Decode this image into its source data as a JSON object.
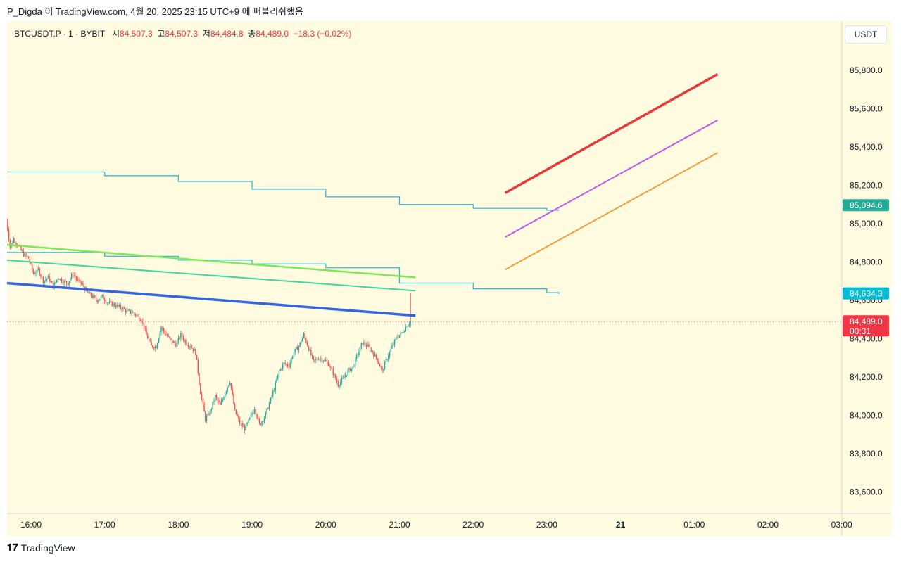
{
  "caption": "P_Digda 이 TradingView.com, 4월 20, 2025 23:15 UTC+9 에 퍼블리쉬했음",
  "symbol": {
    "name": "BTCUSDT.P · 1 · BYBIT",
    "o_label": "시",
    "o": "84,507.3",
    "h_label": "고",
    "h": "84,507.3",
    "l_label": "저",
    "l": "84,484.8",
    "c_label": "종",
    "c": "84,489.0",
    "change": "−18.3 (−0.02%)"
  },
  "currency": "USDT",
  "footer": {
    "brand": "TradingView"
  },
  "colors": {
    "background": "#fffbe0",
    "up": "#26a69a",
    "down": "#ef5350",
    "red": "#e8383a",
    "violet": "#c05ce8",
    "orange": "#f0a040",
    "blue": "#3366e0",
    "green": "#7ee85a",
    "teal": "#40d89a",
    "cyan": "#26b5d4"
  },
  "chart_data": {
    "type": "candlestick",
    "ylim": [
      83500,
      85950
    ],
    "xlim": [
      "15:40",
      "03:10"
    ],
    "y_ticks": [
      "85,800.0",
      "85,600.0",
      "85,400.0",
      "85,200.0",
      "85,000.0",
      "84,800.0",
      "84,600.0",
      "84,400.0",
      "84,200.0",
      "84,000.0",
      "83,800.0",
      "83,600.0"
    ],
    "x_ticks": [
      {
        "label": "16:00",
        "t": 0
      },
      {
        "label": "17:00",
        "t": 60
      },
      {
        "label": "18:00",
        "t": 120
      },
      {
        "label": "19:00",
        "t": 180
      },
      {
        "label": "20:00",
        "t": 240
      },
      {
        "label": "21:00",
        "t": 300
      },
      {
        "label": "22:00",
        "t": 360
      },
      {
        "label": "23:00",
        "t": 420
      },
      {
        "label": "21",
        "t": 480
      },
      {
        "label": "01:00",
        "t": 540
      },
      {
        "label": "02:00",
        "t": 600
      },
      {
        "label": "03:00",
        "t": 660
      }
    ],
    "price_path": [
      [
        -20,
        85020
      ],
      [
        -17,
        84880
      ],
      [
        -14,
        84920
      ],
      [
        -10,
        84880
      ],
      [
        -6,
        84840
      ],
      [
        -2,
        84820
      ],
      [
        2,
        84740
      ],
      [
        6,
        84760
      ],
      [
        10,
        84700
      ],
      [
        14,
        84720
      ],
      [
        18,
        84670
      ],
      [
        22,
        84720
      ],
      [
        26,
        84700
      ],
      [
        30,
        84690
      ],
      [
        34,
        84740
      ],
      [
        38,
        84700
      ],
      [
        42,
        84680
      ],
      [
        46,
        84640
      ],
      [
        50,
        84620
      ],
      [
        54,
        84600
      ],
      [
        58,
        84620
      ],
      [
        62,
        84590
      ],
      [
        66,
        84580
      ],
      [
        70,
        84570
      ],
      [
        74,
        84560
      ],
      [
        78,
        84540
      ],
      [
        82,
        84540
      ],
      [
        86,
        84520
      ],
      [
        90,
        84500
      ],
      [
        94,
        84420
      ],
      [
        98,
        84360
      ],
      [
        102,
        84360
      ],
      [
        106,
        84460
      ],
      [
        110,
        84420
      ],
      [
        114,
        84390
      ],
      [
        118,
        84370
      ],
      [
        122,
        84420
      ],
      [
        126,
        84380
      ],
      [
        130,
        84360
      ],
      [
        134,
        84330
      ],
      [
        138,
        84120
      ],
      [
        142,
        83980
      ],
      [
        146,
        84020
      ],
      [
        150,
        84100
      ],
      [
        154,
        84050
      ],
      [
        158,
        84120
      ],
      [
        162,
        84180
      ],
      [
        166,
        84020
      ],
      [
        170,
        83960
      ],
      [
        174,
        83930
      ],
      [
        178,
        83980
      ],
      [
        182,
        84040
      ],
      [
        186,
        83950
      ],
      [
        190,
        83990
      ],
      [
        194,
        84060
      ],
      [
        198,
        84140
      ],
      [
        202,
        84230
      ],
      [
        206,
        84270
      ],
      [
        210,
        84260
      ],
      [
        214,
        84330
      ],
      [
        218,
        84360
      ],
      [
        222,
        84420
      ],
      [
        226,
        84350
      ],
      [
        230,
        84280
      ],
      [
        234,
        84300
      ],
      [
        238,
        84290
      ],
      [
        242,
        84270
      ],
      [
        246,
        84220
      ],
      [
        250,
        84160
      ],
      [
        254,
        84190
      ],
      [
        258,
        84230
      ],
      [
        262,
        84250
      ],
      [
        266,
        84320
      ],
      [
        270,
        84380
      ],
      [
        274,
        84360
      ],
      [
        278,
        84330
      ],
      [
        282,
        84290
      ],
      [
        286,
        84230
      ],
      [
        290,
        84300
      ],
      [
        294,
        84360
      ],
      [
        298,
        84410
      ],
      [
        302,
        84430
      ],
      [
        306,
        84470
      ],
      [
        309,
        84489
      ]
    ],
    "indicators": [
      {
        "name": "red_line",
        "color": "#e8383a",
        "width": 3.5,
        "points": [
          [
            386,
            85160
          ],
          [
            559,
            85780
          ]
        ]
      },
      {
        "name": "violet_line",
        "color": "#c05ce8",
        "width": 2,
        "points": [
          [
            386,
            84930
          ],
          [
            559,
            85540
          ]
        ]
      },
      {
        "name": "orange_line",
        "color": "#f0a040",
        "width": 2,
        "points": [
          [
            386,
            84760
          ],
          [
            559,
            85370
          ]
        ]
      },
      {
        "name": "green_line",
        "color": "#7ee85a",
        "width": 2.5,
        "points": [
          [
            -20,
            84890
          ],
          [
            313,
            84720
          ]
        ]
      },
      {
        "name": "teal_line",
        "color": "#40d89a",
        "width": 2,
        "points": [
          [
            -20,
            84810
          ],
          [
            313,
            84650
          ]
        ]
      },
      {
        "name": "blue_line",
        "color": "#3366e0",
        "width": 3.5,
        "points": [
          [
            -20,
            84690
          ],
          [
            313,
            84520
          ]
        ]
      }
    ],
    "step_lines": [
      {
        "name": "upper_band",
        "color": "#26b5d4",
        "points": [
          [
            -20,
            85270
          ],
          [
            60,
            85250
          ],
          [
            120,
            85220
          ],
          [
            180,
            85180
          ],
          [
            240,
            85140
          ],
          [
            300,
            85100
          ],
          [
            360,
            85080
          ],
          [
            420,
            85070
          ],
          [
            430,
            85070
          ]
        ]
      },
      {
        "name": "lower_band",
        "color": "#26b5d4",
        "points": [
          [
            -20,
            84850
          ],
          [
            60,
            84830
          ],
          [
            120,
            84810
          ],
          [
            180,
            84790
          ],
          [
            240,
            84770
          ],
          [
            300,
            84690
          ],
          [
            360,
            84660
          ],
          [
            420,
            84640
          ],
          [
            430,
            84634
          ]
        ]
      }
    ],
    "current_price": 84489.0,
    "price_labels": [
      {
        "label": "85,094.6",
        "value": 85094.6,
        "color": "#22ab94"
      },
      {
        "label": "84,634.3",
        "value": 84634.3,
        "color": "#00bcd4"
      },
      {
        "label": "84,489.0",
        "value": 84489.0,
        "color": "#f23645",
        "timer": "00:31"
      }
    ]
  }
}
